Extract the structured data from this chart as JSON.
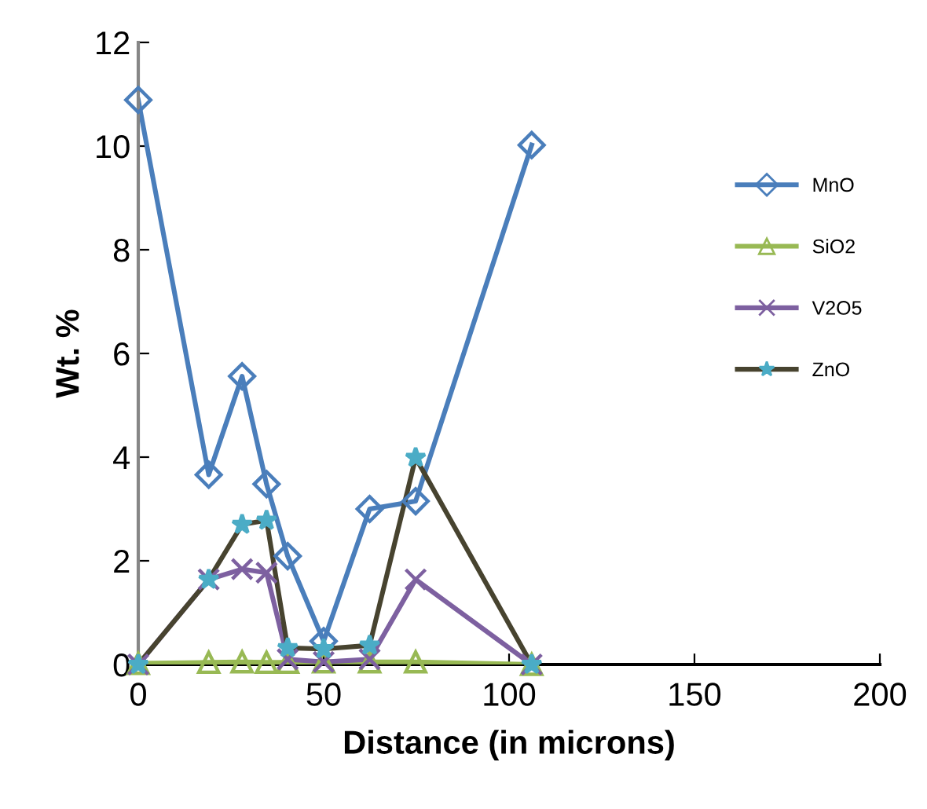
{
  "chart_data": {
    "type": "line",
    "xlabel": "Distance (in microns)",
    "ylabel": "Wt. %",
    "xlim": [
      0,
      200
    ],
    "xticks": [
      0,
      50,
      100,
      150,
      200
    ],
    "ylim": [
      0,
      12
    ],
    "yticks": [
      0,
      2,
      4,
      6,
      8,
      10,
      12
    ],
    "grid": false,
    "legend": "right",
    "series": [
      {
        "name": "MnO",
        "color": "#4a7ebb",
        "marker": "diamond",
        "x": [
          0,
          19,
          28,
          34.6,
          40.3,
          50,
          62.4,
          74.8,
          106.1
        ],
        "values": [
          10.89,
          3.66,
          5.56,
          3.48,
          2.09,
          0.45,
          3.0,
          3.15,
          10.02
        ]
      },
      {
        "name": "SiO2",
        "color": "#98b954",
        "marker": "triangle",
        "x": [
          0,
          19,
          28,
          34.6,
          40.3,
          50,
          62.4,
          74.8,
          106.1
        ],
        "values": [
          0.02,
          0.04,
          0.05,
          0.04,
          0.04,
          0.05,
          0.05,
          0.05,
          0.0
        ]
      },
      {
        "name": "V2O5",
        "color": "#7d60a0",
        "marker": "cross",
        "x": [
          0,
          19,
          28,
          34.6,
          40.3,
          50,
          62.4,
          74.8,
          106.1
        ],
        "values": [
          0.0,
          1.64,
          1.84,
          1.77,
          0.1,
          0.05,
          0.1,
          1.64,
          0.0
        ]
      },
      {
        "name": "ZnO",
        "color": "#47432f",
        "colors": [
          "#4bacc6",
          "#4bacc6",
          "#4bacc6",
          "#4bacc6",
          "#4bacc6",
          "#4bacc6",
          "#4bacc6",
          "#4bacc6",
          "#4bacc6"
        ],
        "marker": "star",
        "x": [
          0,
          19,
          28,
          34.6,
          40.3,
          50,
          62.4,
          74.8,
          106.1
        ],
        "values": [
          0.0,
          1.64,
          2.7,
          2.78,
          0.32,
          0.3,
          0.37,
          3.99,
          0.0
        ]
      }
    ]
  }
}
